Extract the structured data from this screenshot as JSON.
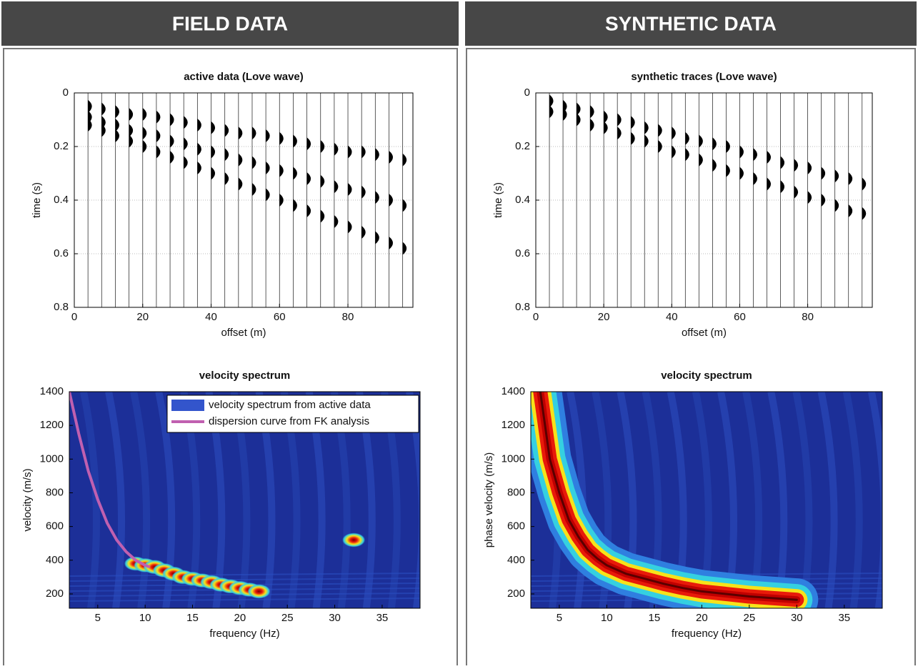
{
  "headers": [
    "FIELD DATA",
    "SYNTHETIC DATA"
  ],
  "chart_data": [
    {
      "type": "wiggle",
      "title": "active data (Love wave)",
      "xlabel": "offset (m)",
      "ylabel": "time (s)",
      "xlim": [
        0,
        99
      ],
      "ylim": [
        0,
        0.8
      ],
      "xticks": [
        0,
        20,
        40,
        60,
        80
      ],
      "yticks": [
        0,
        0.2,
        0.4,
        0.6,
        0.8
      ],
      "grid": true,
      "y_inverted": true,
      "x": [
        4,
        8,
        12,
        16,
        20,
        24,
        28,
        32,
        36,
        40,
        44,
        48,
        52,
        56,
        60,
        64,
        68,
        72,
        76,
        80,
        84,
        88,
        92,
        96
      ],
      "series": [
        {
          "color": "#000000",
          "values": [
            0.05,
            0.06,
            0.07,
            0.08,
            0.08,
            0.09,
            0.1,
            0.11,
            0.12,
            0.13,
            0.14,
            0.15,
            0.15,
            0.16,
            0.17,
            0.18,
            0.19,
            0.2,
            0.21,
            0.22,
            0.22,
            0.23,
            0.24,
            0.25
          ]
        },
        {
          "color": "#000000",
          "values": [
            0.09,
            0.11,
            0.12,
            0.14,
            0.15,
            0.16,
            0.18,
            0.19,
            0.21,
            0.22,
            0.23,
            0.25,
            0.26,
            0.28,
            0.29,
            0.3,
            0.32,
            0.33,
            0.35,
            0.36,
            0.37,
            0.39,
            0.4,
            0.42
          ]
        },
        {
          "color": "#000000",
          "values": [
            0.12,
            0.14,
            0.16,
            0.18,
            0.2,
            0.22,
            0.24,
            0.26,
            0.28,
            0.3,
            0.32,
            0.34,
            0.36,
            0.38,
            0.4,
            0.42,
            0.44,
            0.46,
            0.48,
            0.5,
            0.52,
            0.54,
            0.56,
            0.58
          ]
        }
      ]
    },
    {
      "type": "wiggle",
      "title": "synthetic traces (Love wave)",
      "xlabel": "offset (m)",
      "ylabel": "time (s)",
      "xlim": [
        0,
        99
      ],
      "ylim": [
        0,
        0.8
      ],
      "xticks": [
        0,
        20,
        40,
        60,
        80
      ],
      "yticks": [
        0,
        0.2,
        0.4,
        0.6,
        0.8
      ],
      "grid": true,
      "y_inverted": true,
      "x": [
        4,
        8,
        12,
        16,
        20,
        24,
        28,
        32,
        36,
        40,
        44,
        48,
        52,
        56,
        60,
        64,
        68,
        72,
        76,
        80,
        84,
        88,
        92,
        96
      ],
      "series": [
        {
          "color": "#000000",
          "values": [
            0.03,
            0.05,
            0.06,
            0.07,
            0.09,
            0.1,
            0.11,
            0.13,
            0.14,
            0.15,
            0.17,
            0.18,
            0.19,
            0.2,
            0.22,
            0.23,
            0.24,
            0.26,
            0.27,
            0.28,
            0.3,
            0.31,
            0.32,
            0.34
          ]
        },
        {
          "color": "#000000",
          "values": [
            0.07,
            0.08,
            0.1,
            0.12,
            0.13,
            0.15,
            0.17,
            0.18,
            0.2,
            0.22,
            0.23,
            0.25,
            0.27,
            0.29,
            0.3,
            0.32,
            0.34,
            0.35,
            0.37,
            0.39,
            0.4,
            0.42,
            0.44,
            0.45
          ]
        }
      ]
    },
    {
      "type": "spectrum",
      "title": "velocity spectrum",
      "xlabel": "frequency (Hz)",
      "ylabel": "velocity (m/s)",
      "xlim": [
        2,
        39
      ],
      "ylim": [
        115,
        1400
      ],
      "xticks": [
        5,
        10,
        15,
        20,
        25,
        30,
        35
      ],
      "yticks": [
        200,
        400,
        600,
        800,
        1000,
        1200,
        1400
      ],
      "legend": "upper right",
      "series": [
        {
          "name": "velocity spectrum from active data",
          "color": "#3355cc",
          "style": "blobs",
          "x": [
            9,
            10,
            11,
            12,
            13,
            14,
            15,
            16,
            17,
            18,
            19,
            20,
            21,
            22,
            32
          ],
          "values": [
            380,
            370,
            360,
            340,
            320,
            300,
            290,
            280,
            270,
            255,
            245,
            235,
            225,
            215,
            520
          ]
        },
        {
          "name": "dispersion curve from FK analysis",
          "color": "#c060b0",
          "style": "line",
          "x": [
            2,
            3,
            4,
            5,
            6,
            7,
            8,
            9,
            10,
            10.5
          ],
          "values": [
            1400,
            1150,
            930,
            760,
            620,
            520,
            450,
            400,
            370,
            360
          ]
        }
      ]
    },
    {
      "type": "spectrum",
      "title": "velocity spectrum",
      "xlabel": "frequency (Hz)",
      "ylabel": "phase velocity (m/s)",
      "xlim": [
        2,
        39
      ],
      "ylim": [
        115,
        1400
      ],
      "xticks": [
        5,
        10,
        15,
        20,
        25,
        30,
        35
      ],
      "yticks": [
        200,
        400,
        600,
        800,
        1000,
        1200,
        1400
      ],
      "series": [
        {
          "color": "#c00000",
          "style": "ridge",
          "x": [
            3,
            4,
            5,
            6,
            7,
            8,
            9,
            10,
            12,
            14,
            16,
            18,
            20,
            25,
            30
          ],
          "values": [
            1400,
            1000,
            800,
            640,
            540,
            460,
            410,
            370,
            320,
            290,
            260,
            235,
            215,
            185,
            165
          ]
        }
      ]
    }
  ]
}
